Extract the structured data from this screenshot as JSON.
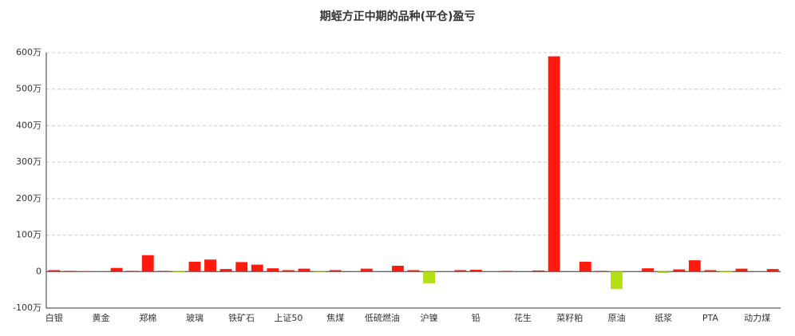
{
  "chart_data": {
    "type": "bar",
    "title": "期蛭方正中期的品种(平仓)盈亏",
    "categories": [
      "白银",
      null,
      null,
      "黄金",
      null,
      null,
      "郑棉",
      null,
      null,
      "玻璃",
      null,
      null,
      "铁矿石",
      null,
      null,
      "上证50",
      null,
      null,
      "焦煤",
      null,
      null,
      "低硫燃油",
      null,
      null,
      "沪镍",
      null,
      null,
      "铅",
      null,
      null,
      "花生",
      null,
      null,
      "菜籽粕",
      null,
      null,
      "原油",
      null,
      null,
      "纸浆",
      null,
      null,
      "PTA",
      null,
      null,
      "动力煤",
      null
    ],
    "values": [
      4,
      2,
      1,
      0,
      10,
      2,
      45,
      2,
      -2,
      27,
      33,
      7,
      26,
      19,
      9,
      4,
      8,
      -1,
      4,
      0,
      8,
      0,
      16,
      4,
      -32,
      0,
      4,
      5,
      0,
      2,
      0,
      3,
      590,
      0,
      27,
      2,
      -48,
      0,
      9,
      -4,
      6,
      31,
      4,
      -2,
      8,
      0,
      7
    ],
    "positive_color": "#ff1a0e",
    "negative_color": "#b5df15",
    "ylim": [
      -100,
      600
    ],
    "yticks": [
      {
        "value": -100,
        "label": "-100万"
      },
      0,
      {
        "value": 100,
        "label": "100万"
      },
      {
        "value": 200,
        "label": "200万"
      },
      {
        "value": 300,
        "label": "300万"
      },
      {
        "value": 400,
        "label": "400万"
      },
      {
        "value": 500,
        "label": "500万"
      },
      {
        "value": 600,
        "label": "600万"
      }
    ],
    "grid": true
  }
}
